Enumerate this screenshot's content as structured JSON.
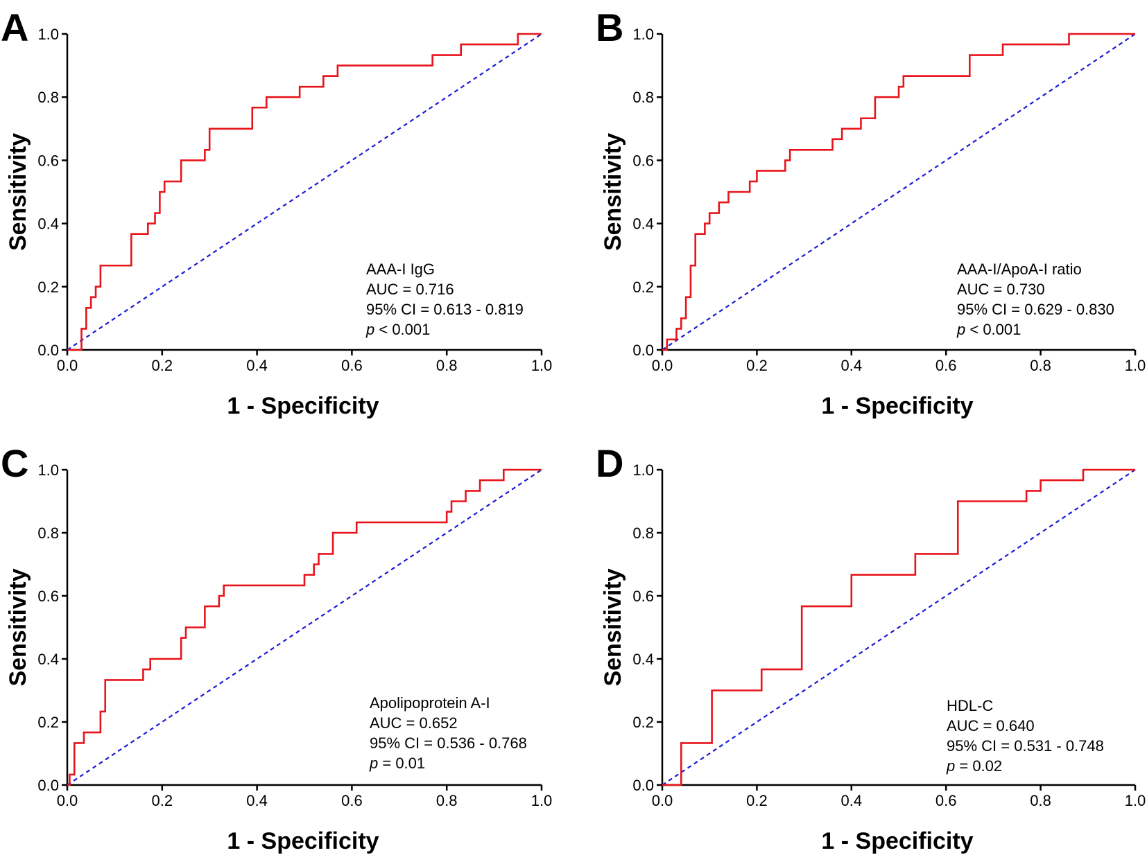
{
  "colors": {
    "roc": "#e8141b",
    "reference": "#1a1ad6",
    "axis": "#000000",
    "background": "#ffffff"
  },
  "chart_data": [
    {
      "type": "line",
      "panel": "A",
      "xlabel": "1 - Specificity",
      "ylabel": "Sensitivity",
      "xlim": [
        0,
        1
      ],
      "ylim": [
        0,
        1
      ],
      "xticks": [
        "0.0",
        "0.2",
        "0.4",
        "0.6",
        "0.8",
        "1.0"
      ],
      "yticks": [
        "0.0",
        "0.2",
        "0.4",
        "0.6",
        "0.8",
        "1.0"
      ],
      "annotation": {
        "name": "AAA-I IgG",
        "auc": "AUC = 0.716",
        "ci": "95% CI = 0.613 - 0.819",
        "p_symbol": "p",
        "p_rest": " < 0.001"
      },
      "series": [
        {
          "name": "ROC",
          "x": [
            0,
            0.03,
            0.03,
            0.04,
            0.04,
            0.05,
            0.05,
            0.06,
            0.06,
            0.07,
            0.07,
            0.135,
            0.135,
            0.17,
            0.17,
            0.185,
            0.185,
            0.195,
            0.195,
            0.205,
            0.205,
            0.215,
            0.215,
            0.24,
            0.24,
            0.29,
            0.29,
            0.3,
            0.3,
            0.39,
            0.39,
            0.42,
            0.42,
            0.49,
            0.49,
            0.54,
            0.54,
            0.57,
            0.57,
            0.77,
            0.77,
            0.83,
            0.83,
            0.95,
            0.95,
            1.0
          ],
          "y": [
            0,
            0,
            0.067,
            0.067,
            0.133,
            0.133,
            0.167,
            0.167,
            0.2,
            0.2,
            0.267,
            0.267,
            0.367,
            0.367,
            0.4,
            0.4,
            0.433,
            0.433,
            0.5,
            0.5,
            0.533,
            0.533,
            0.533,
            0.533,
            0.6,
            0.6,
            0.633,
            0.633,
            0.7,
            0.7,
            0.767,
            0.767,
            0.8,
            0.8,
            0.833,
            0.833,
            0.867,
            0.867,
            0.9,
            0.9,
            0.933,
            0.933,
            0.967,
            0.967,
            1.0,
            1.0
          ]
        },
        {
          "name": "Reference",
          "x": [
            0,
            1
          ],
          "y": [
            0,
            1
          ]
        }
      ]
    },
    {
      "type": "line",
      "panel": "B",
      "xlabel": "1 - Specificity",
      "ylabel": "Sensitivity",
      "xlim": [
        0,
        1
      ],
      "ylim": [
        0,
        1
      ],
      "xticks": [
        "0.0",
        "0.2",
        "0.4",
        "0.6",
        "0.8",
        "1.0"
      ],
      "yticks": [
        "0.0",
        "0.2",
        "0.4",
        "0.6",
        "0.8",
        "1.0"
      ],
      "annotation": {
        "name": "AAA-I/ApoA-I ratio",
        "auc": "AUC = 0.730",
        "ci": "95% CI = 0.629 - 0.830",
        "p_symbol": "p",
        "p_rest": " < 0.001"
      },
      "series": [
        {
          "name": "ROC",
          "x": [
            0,
            0.01,
            0.01,
            0.03,
            0.03,
            0.04,
            0.04,
            0.05,
            0.05,
            0.06,
            0.06,
            0.07,
            0.07,
            0.09,
            0.09,
            0.1,
            0.1,
            0.12,
            0.12,
            0.14,
            0.14,
            0.155,
            0.155,
            0.185,
            0.185,
            0.2,
            0.2,
            0.22,
            0.22,
            0.26,
            0.26,
            0.27,
            0.27,
            0.36,
            0.36,
            0.38,
            0.38,
            0.42,
            0.42,
            0.45,
            0.45,
            0.5,
            0.5,
            0.51,
            0.51,
            0.65,
            0.65,
            0.72,
            0.72,
            0.86,
            0.86,
            1.0
          ],
          "y": [
            0,
            0,
            0.033,
            0.033,
            0.067,
            0.067,
            0.1,
            0.1,
            0.167,
            0.167,
            0.267,
            0.267,
            0.367,
            0.367,
            0.4,
            0.4,
            0.433,
            0.433,
            0.467,
            0.467,
            0.5,
            0.5,
            0.5,
            0.5,
            0.533,
            0.533,
            0.567,
            0.567,
            0.567,
            0.567,
            0.6,
            0.6,
            0.633,
            0.633,
            0.667,
            0.667,
            0.7,
            0.7,
            0.733,
            0.733,
            0.8,
            0.8,
            0.833,
            0.833,
            0.867,
            0.867,
            0.933,
            0.933,
            0.967,
            0.967,
            1.0,
            1.0
          ]
        },
        {
          "name": "Reference",
          "x": [
            0,
            1
          ],
          "y": [
            0,
            1
          ]
        }
      ]
    },
    {
      "type": "line",
      "panel": "C",
      "xlabel": "1 - Specificity",
      "ylabel": "Sensitivity",
      "xlim": [
        0,
        1
      ],
      "ylim": [
        0,
        1
      ],
      "xticks": [
        "0.0",
        "0.2",
        "0.4",
        "0.6",
        "0.8",
        "1.0"
      ],
      "yticks": [
        "0.0",
        "0.2",
        "0.4",
        "0.6",
        "0.8",
        "1.0"
      ],
      "annotation": {
        "name": "Apolipoprotein A-I",
        "auc": "AUC = 0.652",
        "ci": "95% CI = 0.536 - 0.768",
        "p_symbol": "p",
        "p_rest": " = 0.01"
      },
      "series": [
        {
          "name": "ROC",
          "x": [
            0,
            0.005,
            0.005,
            0.015,
            0.015,
            0.035,
            0.035,
            0.07,
            0.07,
            0.08,
            0.08,
            0.16,
            0.16,
            0.175,
            0.175,
            0.24,
            0.24,
            0.25,
            0.25,
            0.29,
            0.29,
            0.32,
            0.32,
            0.33,
            0.33,
            0.5,
            0.5,
            0.52,
            0.52,
            0.53,
            0.53,
            0.56,
            0.56,
            0.61,
            0.61,
            0.8,
            0.8,
            0.81,
            0.81,
            0.84,
            0.84,
            0.87,
            0.87,
            0.92,
            0.92,
            1.0
          ],
          "y": [
            0,
            0,
            0.033,
            0.033,
            0.133,
            0.133,
            0.167,
            0.167,
            0.233,
            0.233,
            0.333,
            0.333,
            0.367,
            0.367,
            0.4,
            0.4,
            0.467,
            0.467,
            0.5,
            0.5,
            0.567,
            0.567,
            0.6,
            0.6,
            0.633,
            0.633,
            0.667,
            0.667,
            0.7,
            0.7,
            0.733,
            0.733,
            0.8,
            0.8,
            0.833,
            0.833,
            0.867,
            0.867,
            0.9,
            0.9,
            0.933,
            0.933,
            0.967,
            0.967,
            1.0,
            1.0
          ]
        },
        {
          "name": "Reference",
          "x": [
            0,
            1
          ],
          "y": [
            0,
            1
          ]
        }
      ]
    },
    {
      "type": "line",
      "panel": "D",
      "xlabel": "1 - Specificity",
      "ylabel": "Sensitivity",
      "xlim": [
        0,
        1
      ],
      "ylim": [
        0,
        1
      ],
      "xticks": [
        "0.0",
        "0.2",
        "0.4",
        "0.6",
        "0.8",
        "1.0"
      ],
      "yticks": [
        "0.0",
        "0.2",
        "0.4",
        "0.6",
        "0.8",
        "1.0"
      ],
      "annotation": {
        "name": "HDL-C",
        "auc": "AUC = 0.640",
        "ci": "95% CI = 0.531 - 0.748",
        "p_symbol": "p",
        "p_rest": " = 0.02"
      },
      "series": [
        {
          "name": "ROC",
          "x": [
            0,
            0.04,
            0.04,
            0.105,
            0.105,
            0.21,
            0.21,
            0.295,
            0.295,
            0.4,
            0.4,
            0.535,
            0.535,
            0.625,
            0.625,
            0.77,
            0.77,
            0.8,
            0.8,
            0.89,
            0.89,
            1.0
          ],
          "y": [
            0,
            0,
            0.133,
            0.133,
            0.3,
            0.3,
            0.367,
            0.367,
            0.567,
            0.567,
            0.667,
            0.667,
            0.733,
            0.733,
            0.9,
            0.9,
            0.933,
            0.933,
            0.967,
            0.967,
            1.0,
            1.0
          ]
        },
        {
          "name": "Reference",
          "x": [
            0,
            1
          ],
          "y": [
            0,
            1
          ]
        }
      ]
    }
  ]
}
